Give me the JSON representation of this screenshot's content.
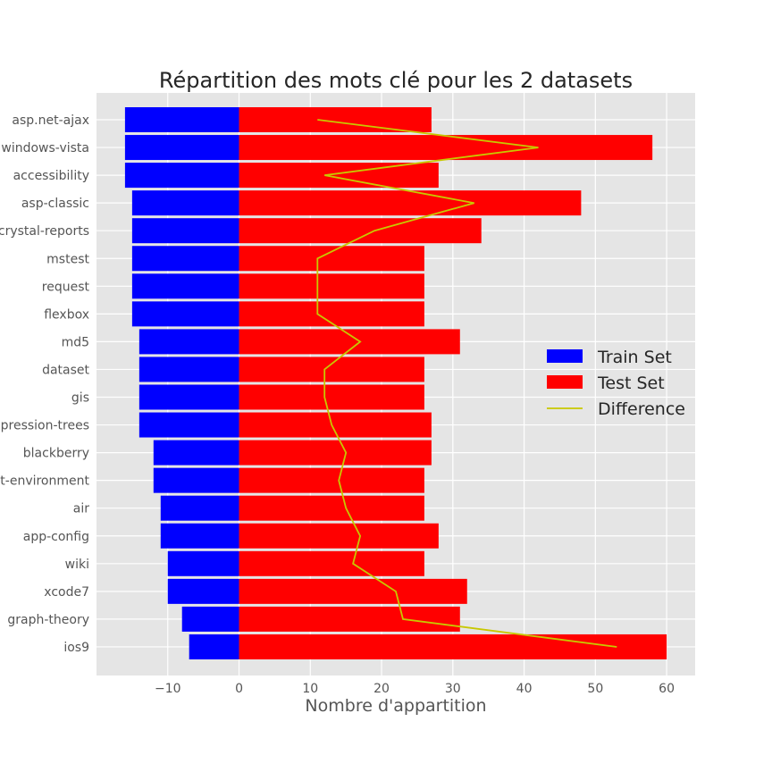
{
  "chart_data": {
    "type": "bar",
    "orientation": "horizontal",
    "title": "Répartition des mots clé pour les 2 datasets",
    "xlabel": "Nombre d'appartition",
    "ylabel": "",
    "xlim": [
      -20,
      64
    ],
    "x_ticks": [
      -10,
      0,
      10,
      20,
      30,
      40,
      50,
      60
    ],
    "x_tick_labels": [
      "−10",
      "0",
      "10",
      "20",
      "30",
      "40",
      "50",
      "60"
    ],
    "grid": true,
    "legend_position": "center-right",
    "categories": [
      "asp.net-ajax",
      "windows-vista",
      "accessibility",
      "asp-classic",
      "crystal-reports",
      "mstest",
      "request",
      "flexbox",
      "md5",
      "dataset",
      "gis",
      "expression-trees",
      "blackberry",
      "development-environment",
      "air",
      "app-config",
      "wiki",
      "xcode7",
      "graph-theory",
      "ios9"
    ],
    "series": [
      {
        "name": "Train Set",
        "kind": "bar",
        "color": "#0000ff",
        "values": [
          -16,
          -16,
          -16,
          -15,
          -15,
          -15,
          -15,
          -15,
          -14,
          -14,
          -14,
          -14,
          -12,
          -12,
          -11,
          -11,
          -10,
          -10,
          -8,
          -7
        ]
      },
      {
        "name": "Test Set",
        "kind": "bar",
        "color": "#ff0000",
        "values": [
          27,
          58,
          28,
          48,
          34,
          26,
          26,
          26,
          31,
          26,
          26,
          27,
          27,
          26,
          26,
          28,
          26,
          32,
          31,
          60
        ]
      },
      {
        "name": "Difference",
        "kind": "line",
        "color": "#c8c800",
        "values": [
          11,
          42,
          12,
          33,
          19,
          11,
          11,
          11,
          17,
          12,
          12,
          13,
          15,
          14,
          15,
          17,
          16,
          22,
          23,
          53
        ]
      }
    ]
  }
}
